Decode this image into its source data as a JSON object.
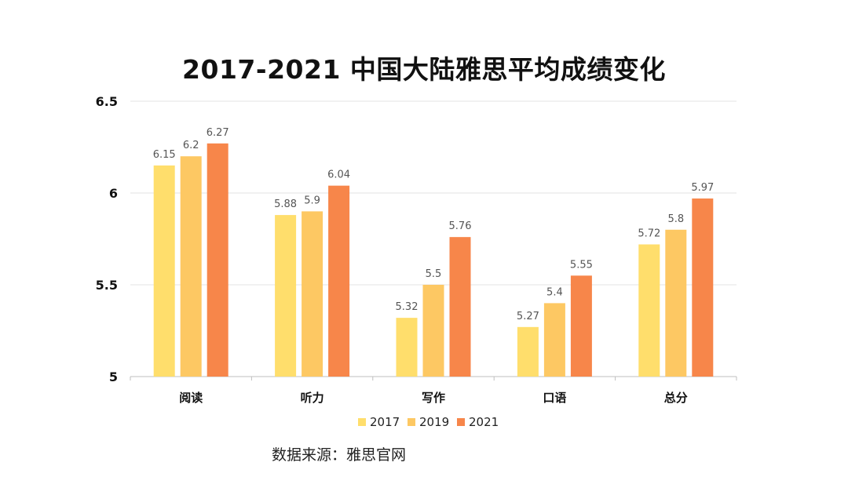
{
  "chart_data": {
    "type": "bar",
    "title": "2017-2021 中国大陆雅思平均成绩变化",
    "categories": [
      "阅读",
      "听力",
      "写作",
      "口语",
      "总分"
    ],
    "series": [
      {
        "name": "2017",
        "color": "#FFDE6C",
        "values": [
          6.15,
          5.88,
          5.32,
          5.27,
          5.72
        ]
      },
      {
        "name": "2019",
        "color": "#FDC863",
        "values": [
          6.2,
          5.9,
          5.5,
          5.4,
          5.8
        ]
      },
      {
        "name": "2021",
        "color": "#F7864A",
        "values": [
          6.27,
          6.04,
          5.76,
          5.55,
          5.97
        ]
      }
    ],
    "ylim": [
      5,
      6.5
    ],
    "yticks": [
      "5",
      "5.5",
      "6",
      "6.5"
    ],
    "grid": true,
    "legend_position": "bottom",
    "xlabel": "",
    "ylabel": ""
  },
  "source": "数据来源：雅思官网"
}
